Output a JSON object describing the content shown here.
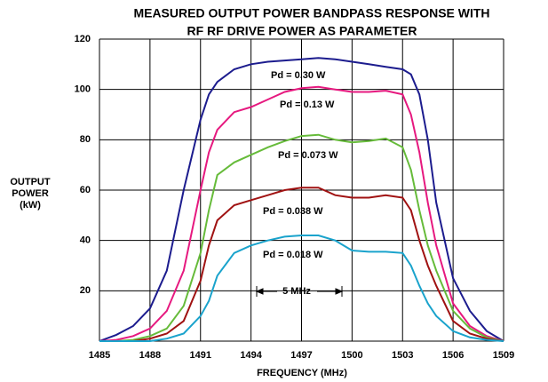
{
  "chart_data": {
    "type": "line",
    "title": "MEASURED OUTPUT POWER BANDPASS RESPONSE WITH",
    "subtitle": "RF RF DRIVE POWER AS PARAMETER",
    "y_label": [
      "OUTPUT",
      "POWER",
      "(kW)"
    ],
    "x_label": "FREQUENCY  (MHz)",
    "annotation": "5 MHz",
    "x": [
      1485,
      1486,
      1487,
      1488,
      1489,
      1490,
      1491,
      1491.5,
      1492,
      1493,
      1494,
      1495,
      1496,
      1497,
      1498,
      1499,
      1500,
      1501,
      1502,
      1503,
      1503.5,
      1504,
      1504.5,
      1505,
      1506,
      1507,
      1508,
      1509
    ],
    "series": [
      {
        "name": "Pd = 0.30 W",
        "color": "#1c1c8e",
        "values": [
          0,
          2.5,
          6,
          13,
          28,
          60,
          88,
          98,
          103,
          108,
          110,
          111,
          111.5,
          112,
          112.5,
          112,
          111,
          110,
          109,
          108,
          106,
          98,
          80,
          55,
          25,
          12,
          4,
          0
        ]
      },
      {
        "name": "Pd = 0.13 W",
        "color": "#e6197f",
        "values": [
          0,
          0.5,
          2,
          5,
          12,
          28,
          60,
          75,
          84,
          91,
          93,
          96,
          99,
          100.5,
          101,
          100,
          99,
          99,
          99.5,
          98,
          90,
          75,
          55,
          38,
          15,
          6,
          2,
          0
        ]
      },
      {
        "name": "Pd = 0.073 W",
        "color": "#66bb3a",
        "values": [
          0,
          0,
          0.5,
          2,
          5,
          14,
          35,
          52,
          66,
          71,
          74,
          77,
          79.5,
          81.5,
          82,
          80,
          79,
          79.5,
          80.5,
          77,
          68,
          52,
          38,
          28,
          12,
          5,
          1.5,
          0
        ]
      },
      {
        "name": "Pd = 0.038 W",
        "color": "#a01212",
        "values": [
          0,
          0,
          0,
          1,
          3,
          8,
          24,
          38,
          48,
          54,
          56,
          58,
          60,
          61,
          61,
          58,
          57,
          57,
          58,
          57,
          52,
          40,
          30,
          22,
          8,
          3,
          1,
          0
        ]
      },
      {
        "name": "Pd = 0.018 W",
        "color": "#1aa3cc",
        "values": [
          0,
          0,
          0,
          0,
          1,
          3,
          10,
          16,
          26,
          35,
          38,
          40,
          41.5,
          42,
          42,
          40,
          36,
          35.5,
          35.5,
          35,
          30,
          22,
          15,
          10,
          4,
          1.5,
          0.5,
          0
        ]
      }
    ],
    "xlim": [
      1485,
      1509
    ],
    "xticks": [
      1485,
      1488,
      1491,
      1494,
      1497,
      1500,
      1503,
      1506,
      1509
    ],
    "ylim": [
      0,
      120
    ],
    "yticks": [
      20,
      40,
      60,
      80,
      100,
      120
    ],
    "grid": true
  }
}
